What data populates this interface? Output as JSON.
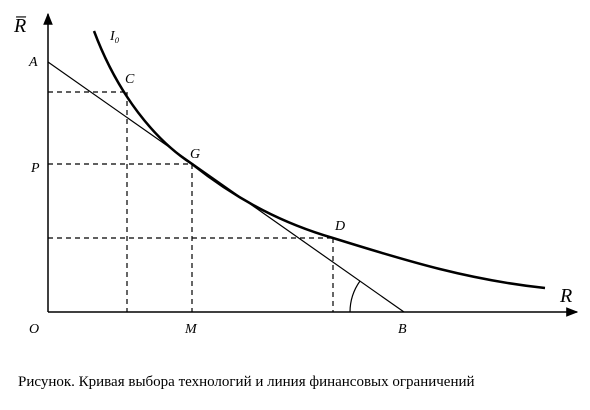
{
  "diagram": {
    "axis_labels": {
      "y": "R̅",
      "x": "R"
    },
    "curve_label": "I₀",
    "point_labels": {
      "origin": "O",
      "a": "A",
      "b": "B",
      "c": "C",
      "d": "D",
      "g": "G",
      "p": "P",
      "m": "M"
    }
  },
  "caption": "Рисунок. Кривая выбора технологий и линия финансовых ограничений"
}
